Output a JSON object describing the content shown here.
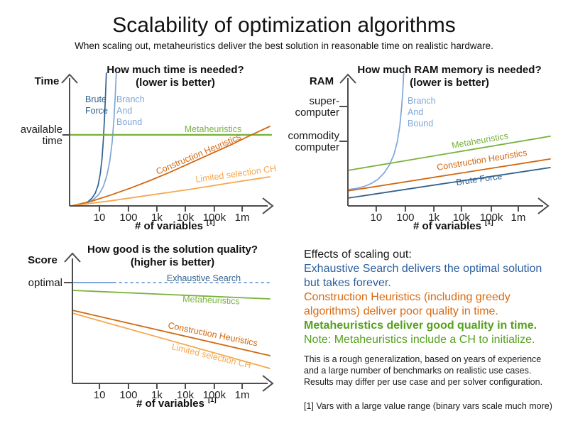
{
  "header": {
    "title": "Scalability of optimization algorithms",
    "subtitle": "When scaling out, metaheuristics deliver the best solution in reasonable time on realistic hardware."
  },
  "colors": {
    "axis_grey": "#4d4d4d",
    "brute_force_blue": "#31618f",
    "branch_and_bound_blue": "#7ea6d8",
    "metaheuristics_green": "#79b23d",
    "construction_orange": "#d2670e",
    "limited_ch_orange": "#f5a84e",
    "panel_blue": "#2d5f9e",
    "panel_orange": "#d86a10",
    "panel_green": "#56a01e"
  },
  "chart_data": [
    {
      "type": "line",
      "title": "How much time is needed?",
      "subtitle": "(lower is better)",
      "y_axis_name": "Time",
      "x_label": "# of variables",
      "x_label_sup": "[1]",
      "x_scale": "log",
      "grid": false,
      "x_ticks": [
        "10",
        "100",
        "1k",
        "10k",
        "100k",
        "1m"
      ],
      "x_tick_pos": [
        0.143,
        0.289,
        0.432,
        0.575,
        0.721,
        0.861
      ],
      "y_annotations": [
        {
          "label_lines": [
            "available",
            "time"
          ],
          "pos": 0.556
        }
      ],
      "series": [
        {
          "name": "Brute Force",
          "label_lines": [
            "Brute",
            "Force"
          ],
          "color": "#31618f",
          "width": 1.7,
          "shape": "exponential",
          "points": [
            [
              0,
              0
            ],
            [
              0.03,
              0.006
            ],
            [
              0.06,
              0.016
            ],
            [
              0.085,
              0.032
            ],
            [
              0.105,
              0.06
            ],
            [
              0.122,
              0.1
            ],
            [
              0.136,
              0.16
            ],
            [
              0.147,
              0.25
            ],
            [
              0.156,
              0.37
            ],
            [
              0.163,
              0.52
            ],
            [
              0.169,
              0.7
            ],
            [
              0.174,
              0.88
            ],
            [
              0.178,
              1.04
            ]
          ]
        },
        {
          "name": "Branch And Bound",
          "label_lines": [
            "Branch",
            "And",
            "Bound"
          ],
          "color": "#7ea6d8",
          "width": 1.7,
          "shape": "exponential",
          "points": [
            [
              0,
              0
            ],
            [
              0.04,
              0.008
            ],
            [
              0.08,
              0.022
            ],
            [
              0.113,
              0.05
            ],
            [
              0.14,
              0.09
            ],
            [
              0.162,
              0.15
            ],
            [
              0.18,
              0.235
            ],
            [
              0.195,
              0.35
            ],
            [
              0.207,
              0.5
            ],
            [
              0.216,
              0.68
            ],
            [
              0.223,
              0.87
            ],
            [
              0.228,
              1.04
            ]
          ]
        },
        {
          "name": "Metaheuristics",
          "label_lines": [
            "Metaheuristics"
          ],
          "color": "#79b23d",
          "width": 2.4,
          "shape": "constant at available time",
          "points": [
            [
              0,
              0.556
            ],
            [
              1.007,
              0.556
            ]
          ]
        },
        {
          "name": "Construction Heuristics",
          "label_lines": [
            "Construction Heuristics"
          ],
          "color": "#d2670e",
          "width": 1.8,
          "shape": "slightly superlinear",
          "points": [
            [
              0,
              0
            ],
            [
              0.1,
              0.035
            ],
            [
              0.2,
              0.085
            ],
            [
              0.3,
              0.14
            ],
            [
              0.4,
              0.2
            ],
            [
              0.5,
              0.265
            ],
            [
              0.6,
              0.335
            ],
            [
              0.7,
              0.405
            ],
            [
              0.8,
              0.475
            ],
            [
              0.9,
              0.55
            ],
            [
              1.0,
              0.622
            ]
          ]
        },
        {
          "name": "Limited selection CH",
          "label_lines": [
            "Limited selection CH"
          ],
          "color": "#f5a84e",
          "width": 1.8,
          "shape": "near linear low slope",
          "points": [
            [
              0,
              0
            ],
            [
              0.2,
              0.04
            ],
            [
              0.4,
              0.085
            ],
            [
              0.6,
              0.13
            ],
            [
              0.8,
              0.18
            ],
            [
              1.0,
              0.228
            ]
          ]
        }
      ]
    },
    {
      "type": "line",
      "title": "How much RAM memory is needed?",
      "subtitle": "(lower is better)",
      "y_axis_name": "RAM",
      "x_label": "# of variables",
      "x_label_sup": "[1]",
      "x_scale": "log",
      "grid": false,
      "x_ticks": [
        "10",
        "100",
        "1k",
        "10k",
        "100k",
        "1m"
      ],
      "x_tick_pos": [
        0.14,
        0.284,
        0.425,
        0.561,
        0.709,
        0.842
      ],
      "y_annotations": [
        {
          "label_lines": [
            "super-",
            "computer"
          ],
          "pos": 0.778
        },
        {
          "label_lines": [
            "commodity",
            "computer"
          ],
          "pos": 0.506
        }
      ],
      "series": [
        {
          "name": "Branch And Bound",
          "label_lines": [
            "Branch",
            "And",
            "Bound"
          ],
          "color": "#7ea6d8",
          "width": 1.7,
          "shape": "exponential",
          "points": [
            [
              0,
              0.128
            ],
            [
              0.04,
              0.136
            ],
            [
              0.08,
              0.152
            ],
            [
              0.115,
              0.175
            ],
            [
              0.15,
              0.21
            ],
            [
              0.18,
              0.26
            ],
            [
              0.205,
              0.32
            ],
            [
              0.227,
              0.4
            ],
            [
              0.244,
              0.5
            ],
            [
              0.257,
              0.63
            ],
            [
              0.266,
              0.78
            ],
            [
              0.272,
              0.92
            ],
            [
              0.276,
              1.05
            ]
          ]
        },
        {
          "name": "Metaheuristics",
          "label_lines": [
            "Metaheuristics"
          ],
          "color": "#79b23d",
          "width": 1.8,
          "shape": "linear",
          "points": [
            [
              0,
              0.278
            ],
            [
              1.0,
              0.545
            ]
          ]
        },
        {
          "name": "Construction Heuristics",
          "label_lines": [
            "Construction Heuristics"
          ],
          "color": "#d2670e",
          "width": 1.8,
          "shape": "linear",
          "points": [
            [
              0,
              0.117
            ],
            [
              1.0,
              0.367
            ]
          ]
        },
        {
          "name": "Brute Force",
          "label_lines": [
            "Brute Force"
          ],
          "color": "#31618f",
          "width": 1.8,
          "shape": "linear",
          "points": [
            [
              0,
              0.061
            ],
            [
              1.0,
              0.3
            ]
          ]
        }
      ]
    },
    {
      "type": "line",
      "title": "How good is the solution quality?",
      "subtitle": "(higher is better)",
      "y_axis_name": "Score",
      "x_label": "# of variables",
      "x_label_sup": "[1]",
      "x_scale": "log",
      "grid": false,
      "x_ticks": [
        "10",
        "100",
        "1k",
        "10k",
        "100k",
        "1m"
      ],
      "x_tick_pos": [
        0.137,
        0.284,
        0.428,
        0.572,
        0.719,
        0.86
      ],
      "y_annotations": [
        {
          "label_lines": [
            "optimal"
          ],
          "pos": 0.789
        }
      ],
      "series": [
        {
          "name": "Exhaustive Search",
          "label_lines": [
            "Exhaustive Search"
          ],
          "color": "#7ea6d8",
          "label_color": "#31618f",
          "width": 2,
          "shape": "constant at optimal, theoretical beyond",
          "segments": [
            {
              "dashed": false,
              "points": [
                [
                  0,
                  0.789
                ],
                [
                  0.21,
                  0.789
                ]
              ]
            },
            {
              "dashed": true,
              "points": [
                [
                  0.21,
                  0.789
                ],
                [
                  1.0,
                  0.789
                ]
              ]
            }
          ]
        },
        {
          "name": "Metaheuristics",
          "label_lines": [
            "Metaheuristics"
          ],
          "color": "#79b23d",
          "width": 1.8,
          "shape": "slight decline near optimal",
          "points": [
            [
              0,
              0.728
            ],
            [
              1.0,
              0.661
            ]
          ]
        },
        {
          "name": "Construction Heuristics",
          "label_lines": [
            "Construction Heuristics"
          ],
          "color": "#d2670e",
          "width": 1.8,
          "shape": "declining",
          "points": [
            [
              0,
              0.572
            ],
            [
              1.0,
              0.217
            ]
          ]
        },
        {
          "name": "Limited selection CH",
          "label_lines": [
            "Limited selection CH"
          ],
          "color": "#f5a84e",
          "width": 1.8,
          "shape": "declining steeper",
          "points": [
            [
              0,
              0.55
            ],
            [
              1.0,
              0.117
            ]
          ]
        }
      ]
    }
  ],
  "panel": {
    "heading": "Effects of scaling out:",
    "lines": [
      {
        "text": "Exhaustive Search delivers the optimal solution",
        "color": "blue"
      },
      {
        "text": "but takes forever.",
        "color": "blue"
      },
      {
        "text": "Construction Heuristics (including greedy",
        "color": "orange"
      },
      {
        "text": "algorithms) deliver poor quality in time.",
        "color": "orange"
      },
      {
        "text": "Metaheuristics deliver good quality in time.",
        "color": "green",
        "bold": true
      },
      {
        "text": "Note: Metaheuristics include a CH to initialize.",
        "color": "green"
      }
    ],
    "disclaimer_lines": [
      "This is a rough generalization, based on years of experience",
      "and a large number of benchmarks on realistic use cases.",
      "Results may differ per use case and per solver configuration."
    ],
    "footnote": "[1] Vars with a large value range (binary vars scale much more)"
  }
}
